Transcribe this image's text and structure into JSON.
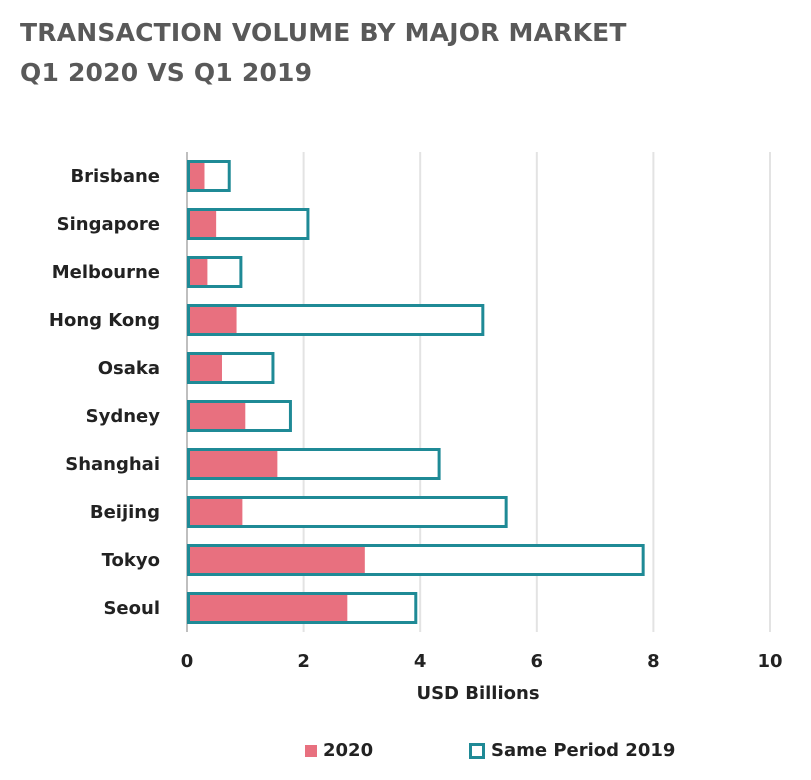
{
  "title_line1": "TRANSACTION VOLUME BY MAJOR MARKET",
  "title_line2": "Q1 2020 VS Q1 2019",
  "chart_data": {
    "type": "bar",
    "orientation": "horizontal",
    "categories": [
      "Brisbane",
      "Singapore",
      "Melbourne",
      "Hong Kong",
      "Osaka",
      "Sydney",
      "Shanghai",
      "Beijing",
      "Tokyo",
      "Seoul"
    ],
    "series": [
      {
        "name": "2020",
        "values": [
          0.3,
          0.5,
          0.35,
          0.85,
          0.6,
          1.0,
          1.55,
          0.95,
          3.05,
          2.75
        ],
        "color": "#E8707F"
      },
      {
        "name": "Same Period 2019",
        "values": [
          0.75,
          2.1,
          0.95,
          5.1,
          1.5,
          1.8,
          4.35,
          5.5,
          7.85,
          3.95
        ],
        "color": "#1F8A96"
      }
    ],
    "xlabel": "USD Billions",
    "xlim": [
      0,
      10
    ],
    "xticks": [
      "0",
      "2",
      "4",
      "6",
      "8",
      "10"
    ],
    "grid": true,
    "legend": "bottom"
  }
}
